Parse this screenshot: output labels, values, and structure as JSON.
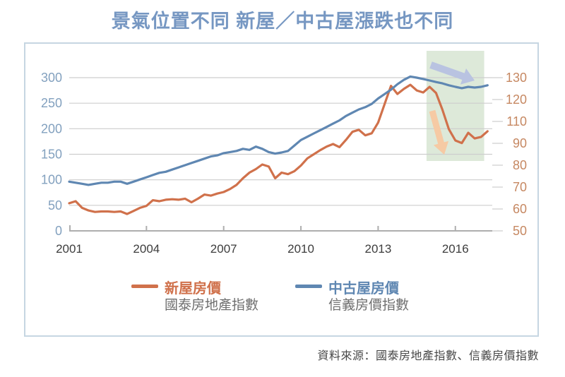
{
  "title": "景氣位置不同 新屋／中古屋漲跌也不同",
  "source_note": "資料來源：國泰房地產指數、信義房價指數",
  "legend": [
    {
      "label": "新屋房價",
      "sublabel": "國泰房地產指數",
      "color": "#d0714b"
    },
    {
      "label": "中古屋房價",
      "sublabel": "信義房價指數",
      "color": "#5f87b2"
    }
  ],
  "colors": {
    "title_text": "#7697c2",
    "left_axis_text": "#83a1bf",
    "right_axis_text": "#c68862",
    "x_axis_text": "#3d3d3d",
    "new_home_line": "#d0714b",
    "existing_home_line": "#5f87b2",
    "gridline": "#cdcdcd",
    "axis_line": "#aeaeae",
    "box_border": "#c6d6e2",
    "highlight_region": "#dde9d9",
    "blue_arrow": "#b9c3e1",
    "orange_arrow": "#f6caa4"
  },
  "chart_data": {
    "type": "line",
    "title": "景氣位置不同 新屋／中古屋漲跌也不同",
    "x_ticks": [
      "2001",
      "2004",
      "2007",
      "2010",
      "2013",
      "2016"
    ],
    "x_range": [
      2001,
      2017.45
    ],
    "grid": "horizontal gridlines at left-axis ticks, plot framed in light box",
    "legend_position": "below plot, inside frame",
    "left_axis": {
      "ticks": [
        "0",
        "50",
        "100",
        "150",
        "200",
        "250",
        "300"
      ],
      "range": [
        0,
        300
      ]
    },
    "right_axis": {
      "ticks": [
        "50",
        "60",
        "70",
        "80",
        "90",
        "110",
        "120",
        "130"
      ],
      "note": "ticks evenly spaced as printed in original; the 100 label is skipped"
    },
    "series": [
      {
        "name": "新屋房價（國泰房地產指數）",
        "axis": "left",
        "color": "#d0714b",
        "points": [
          [
            2001.0,
            54
          ],
          [
            2001.25,
            58
          ],
          [
            2001.5,
            45
          ],
          [
            2001.75,
            40
          ],
          [
            2002.0,
            37
          ],
          [
            2002.25,
            38
          ],
          [
            2002.5,
            38
          ],
          [
            2002.75,
            37
          ],
          [
            2003.0,
            38
          ],
          [
            2003.25,
            33
          ],
          [
            2003.5,
            39
          ],
          [
            2003.75,
            45
          ],
          [
            2004.0,
            49
          ],
          [
            2004.25,
            60
          ],
          [
            2004.5,
            58
          ],
          [
            2004.75,
            61
          ],
          [
            2005.0,
            62
          ],
          [
            2005.25,
            61
          ],
          [
            2005.5,
            63
          ],
          [
            2005.75,
            56
          ],
          [
            2006.0,
            63
          ],
          [
            2006.25,
            71
          ],
          [
            2006.5,
            69
          ],
          [
            2006.75,
            73
          ],
          [
            2007.0,
            76
          ],
          [
            2007.25,
            82
          ],
          [
            2007.5,
            90
          ],
          [
            2007.75,
            103
          ],
          [
            2008.0,
            114
          ],
          [
            2008.25,
            121
          ],
          [
            2008.5,
            130
          ],
          [
            2008.75,
            126
          ],
          [
            2009.0,
            103
          ],
          [
            2009.25,
            114
          ],
          [
            2009.5,
            111
          ],
          [
            2009.75,
            117
          ],
          [
            2010.0,
            128
          ],
          [
            2010.25,
            142
          ],
          [
            2010.5,
            150
          ],
          [
            2010.75,
            158
          ],
          [
            2011.0,
            165
          ],
          [
            2011.25,
            170
          ],
          [
            2011.5,
            164
          ],
          [
            2011.75,
            178
          ],
          [
            2012.0,
            194
          ],
          [
            2012.25,
            198
          ],
          [
            2012.5,
            187
          ],
          [
            2012.75,
            191
          ],
          [
            2013.0,
            212
          ],
          [
            2013.25,
            248
          ],
          [
            2013.5,
            284
          ],
          [
            2013.75,
            268
          ],
          [
            2014.0,
            278
          ],
          [
            2014.25,
            286
          ],
          [
            2014.5,
            275
          ],
          [
            2014.75,
            271
          ],
          [
            2015.0,
            282
          ],
          [
            2015.25,
            270
          ],
          [
            2015.5,
            237
          ],
          [
            2015.75,
            199
          ],
          [
            2016.0,
            177
          ],
          [
            2016.25,
            172
          ],
          [
            2016.5,
            192
          ],
          [
            2016.75,
            181
          ],
          [
            2017.0,
            184
          ],
          [
            2017.25,
            195
          ]
        ]
      },
      {
        "name": "中古屋房價（信義房價指數）",
        "axis": "right",
        "color": "#5f87b2",
        "points": [
          [
            2001.0,
            72.5
          ],
          [
            2001.25,
            72
          ],
          [
            2001.5,
            71.5
          ],
          [
            2001.75,
            71
          ],
          [
            2002.0,
            71.5
          ],
          [
            2002.25,
            72
          ],
          [
            2002.5,
            72
          ],
          [
            2002.75,
            72.5
          ],
          [
            2003.0,
            72.5
          ],
          [
            2003.25,
            71.5
          ],
          [
            2003.5,
            72.5
          ],
          [
            2003.75,
            73.5
          ],
          [
            2004.0,
            74.5
          ],
          [
            2004.25,
            75.5
          ],
          [
            2004.5,
            76.5
          ],
          [
            2004.75,
            77
          ],
          [
            2005.0,
            78
          ],
          [
            2005.25,
            79
          ],
          [
            2005.5,
            80
          ],
          [
            2005.75,
            81
          ],
          [
            2006.0,
            82
          ],
          [
            2006.25,
            83
          ],
          [
            2006.5,
            84
          ],
          [
            2006.75,
            84.5
          ],
          [
            2007.0,
            85.5
          ],
          [
            2007.25,
            86
          ],
          [
            2007.5,
            86.5
          ],
          [
            2007.75,
            87.5
          ],
          [
            2008.0,
            87
          ],
          [
            2008.25,
            88.5
          ],
          [
            2008.5,
            87.5
          ],
          [
            2008.75,
            86
          ],
          [
            2009.0,
            85.3
          ],
          [
            2009.25,
            85.8
          ],
          [
            2009.5,
            86.5
          ],
          [
            2009.75,
            89
          ],
          [
            2010.0,
            93
          ],
          [
            2010.25,
            96
          ],
          [
            2010.5,
            99
          ],
          [
            2010.75,
            102
          ],
          [
            2011.0,
            105
          ],
          [
            2011.25,
            108
          ],
          [
            2011.5,
            110.5
          ],
          [
            2011.75,
            112.5
          ],
          [
            2012.0,
            114
          ],
          [
            2012.25,
            115.5
          ],
          [
            2012.5,
            116.5
          ],
          [
            2012.75,
            118
          ],
          [
            2013.0,
            120.5
          ],
          [
            2013.25,
            122.5
          ],
          [
            2013.5,
            124.5
          ],
          [
            2013.75,
            127
          ],
          [
            2014.0,
            129
          ],
          [
            2014.25,
            130.5
          ],
          [
            2014.5,
            130
          ],
          [
            2014.75,
            129.4
          ],
          [
            2015.0,
            128.7
          ],
          [
            2015.25,
            128
          ],
          [
            2015.5,
            127.4
          ],
          [
            2015.75,
            126.5
          ],
          [
            2016.0,
            125.8
          ],
          [
            2016.25,
            125.2
          ],
          [
            2016.5,
            125.8
          ],
          [
            2016.75,
            125.5
          ],
          [
            2017.0,
            125.8
          ],
          [
            2017.25,
            126.5
          ]
        ]
      }
    ],
    "annotations": {
      "highlight_region": {
        "x_start": 2014.88,
        "x_end": 2017.12,
        "color": "#dde9d9"
      },
      "arrows": [
        {
          "name": "existing-home-flat-decline-arrow",
          "color": "#b9c3e1",
          "direction": "right-down"
        },
        {
          "name": "new-home-plunge-arrow",
          "color": "#f6caa4",
          "direction": "down"
        }
      ]
    }
  }
}
